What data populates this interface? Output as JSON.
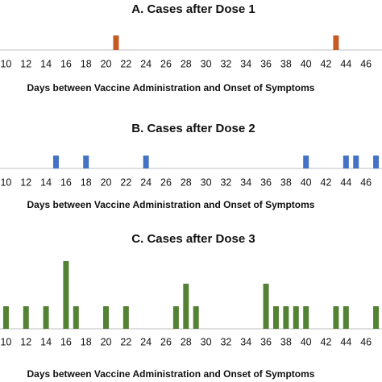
{
  "chart_data": [
    {
      "type": "bar",
      "title": "A. Cases after Dose 1",
      "x_label": "Days between Vaccine Administration and Onset of Symptoms",
      "x": [
        21,
        43
      ],
      "values": [
        1,
        1
      ],
      "color": "#c55a24",
      "xlim": [
        9.4,
        47.6
      ],
      "xticks": [
        10,
        12,
        14,
        16,
        18,
        20,
        22,
        24,
        26,
        28,
        30,
        32,
        34,
        36,
        38,
        40,
        42,
        44,
        46
      ],
      "ylim": [
        0,
        1
      ]
    },
    {
      "type": "bar",
      "title": "B. Cases after Dose 2",
      "x_label": "Days between Vaccine Administration and Onset of Symptoms",
      "x": [
        15,
        18,
        24,
        40,
        44,
        45,
        47
      ],
      "values": [
        1,
        1,
        1,
        1,
        1,
        1,
        1
      ],
      "color": "#4472c4",
      "xlim": [
        9.4,
        47.6
      ],
      "xticks": [
        10,
        12,
        14,
        16,
        18,
        20,
        22,
        24,
        26,
        28,
        30,
        32,
        34,
        36,
        38,
        40,
        42,
        44,
        46
      ],
      "ylim": [
        0,
        1
      ]
    },
    {
      "type": "bar",
      "title": "C. Cases after Dose 3",
      "x_label": "Days between Vaccine Administration and Onset of Symptoms",
      "x": [
        10,
        12,
        14,
        16,
        17,
        20,
        22,
        27,
        28,
        29,
        36,
        37,
        38,
        39,
        40,
        43,
        44,
        47
      ],
      "values": [
        1,
        1,
        1,
        3,
        1,
        1,
        1,
        1,
        2,
        1,
        2,
        1,
        1,
        1,
        1,
        1,
        1,
        1
      ],
      "color": "#548235",
      "xlim": [
        9.4,
        47.6
      ],
      "xticks": [
        10,
        12,
        14,
        16,
        18,
        20,
        22,
        24,
        26,
        28,
        30,
        32,
        34,
        36,
        38,
        40,
        42,
        44,
        46
      ],
      "ylim": [
        0,
        3
      ]
    }
  ]
}
